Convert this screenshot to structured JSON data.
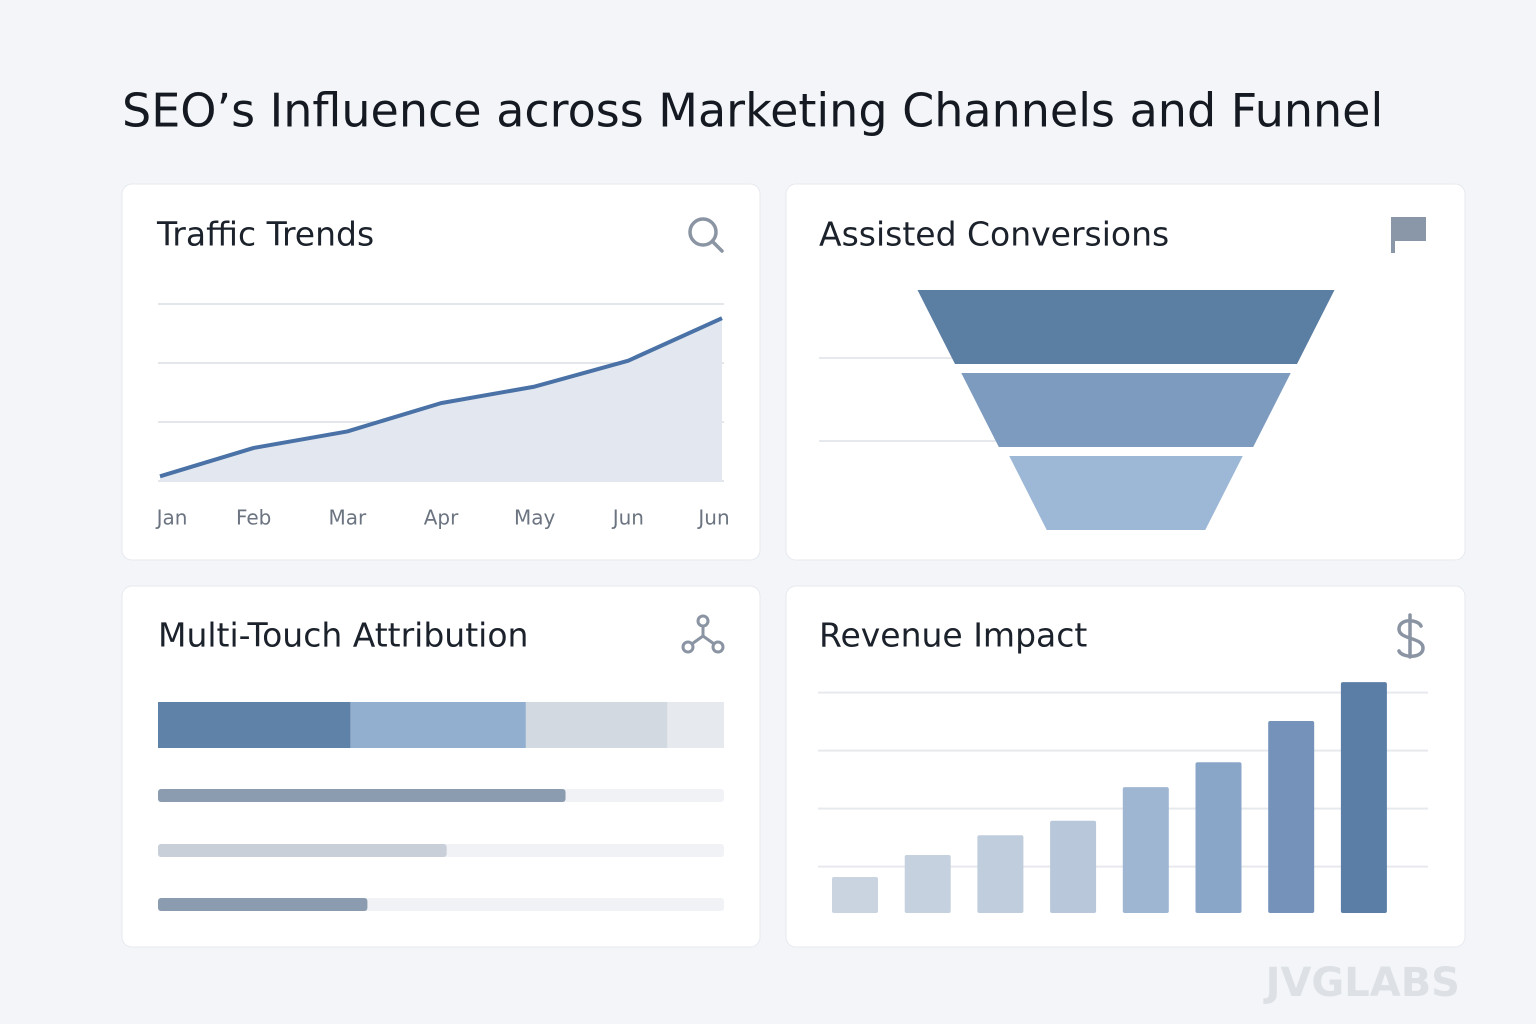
{
  "title": "SEO’s Influence across Marketing Channels and Funnel",
  "watermark": "JVGLABS",
  "chart_data": [
    {
      "type": "area",
      "title": "Traffic Trends",
      "categories": [
        "Jan",
        "Feb",
        "Mar",
        "Apr",
        "May",
        "Jun",
        "Jun"
      ],
      "values": [
        2,
        14,
        21,
        33,
        40,
        51,
        69
      ],
      "color": "#4a72a6",
      "ylim": [
        0,
        75
      ],
      "yticks": [
        25,
        50,
        75
      ],
      "grid": true
    },
    {
      "type": "funnel",
      "title": "Assisted Conversions",
      "values": [
        100,
        79,
        56
      ],
      "colors": [
        "#5b7ea3",
        "#7d9bbf",
        "#9db8d6"
      ]
    },
    {
      "type": "attribution",
      "title": "Multi-Touch Attribution",
      "xlim": [
        0,
        100
      ],
      "segments": {
        "values": [
          34,
          31,
          25,
          10
        ],
        "colors": [
          "#5f82a8",
          "#93afcf",
          "#d3d9e0",
          "#e6e9ed"
        ]
      },
      "bars": {
        "values": [
          72,
          51,
          37
        ],
        "colors": [
          "#8b9bb0",
          "#c8cfd8",
          "#8b9bb0"
        ]
      }
    },
    {
      "type": "bar",
      "title": "Revenue Impact",
      "values": [
        0.62,
        1.0,
        1.34,
        1.59,
        2.17,
        2.6,
        3.31,
        3.98
      ],
      "colors": [
        "#c9d4e0",
        "#c5d1de",
        "#bfcddd",
        "#b8c8da",
        "#9fb6d2",
        "#89a5c8",
        "#7593ba",
        "#5b7ea6"
      ],
      "ylim": [
        0,
        4
      ],
      "yticks": [
        0.8,
        1.8,
        2.8,
        3.8
      ],
      "grid": true
    }
  ]
}
